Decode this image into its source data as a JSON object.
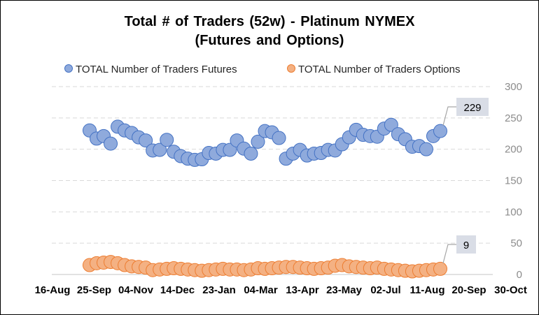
{
  "chart_data": {
    "type": "scatter",
    "title_line1": "Total # of Traders (52w) - Platinum  NYMEX",
    "title_line2": "(Futures and Options)",
    "ylim": [
      0,
      300
    ],
    "y_ticks": [
      "0",
      "50",
      "100",
      "150",
      "200",
      "250",
      "300"
    ],
    "y_axis_side": "right",
    "grid": "horizontal dashed",
    "legend_position": "top",
    "x_ticks": [
      "16-Aug",
      "25-Sep",
      "04-Nov",
      "14-Dec",
      "23-Jan",
      "04-Mar",
      "13-Apr",
      "23-May",
      "02-Jul",
      "11-Aug",
      "20-Sep",
      "30-Oct"
    ],
    "series": [
      {
        "name": "TOTAL Number of Traders Futures",
        "color": "#8faadc",
        "stroke": "#4472c4",
        "values": [
          230,
          217,
          221,
          209,
          236,
          230,
          226,
          219,
          214,
          198,
          199,
          215,
          196,
          189,
          185,
          183,
          184,
          194,
          193,
          199,
          199,
          214,
          201,
          193,
          212,
          229,
          227,
          218,
          185,
          193,
          199,
          190,
          193,
          194,
          199,
          198,
          208,
          219,
          231,
          223,
          221,
          220,
          233,
          239,
          224,
          216,
          204,
          205,
          200,
          221,
          229
        ]
      },
      {
        "name": "TOTAL Number of Traders Options",
        "color": "#f4b183",
        "stroke": "#ed7d31",
        "values": [
          15,
          18,
          19,
          20,
          18,
          15,
          13,
          12,
          11,
          7,
          8,
          9,
          10,
          9,
          8,
          7,
          6,
          7,
          8,
          9,
          8,
          8,
          7,
          8,
          10,
          9,
          10,
          11,
          12,
          12,
          11,
          10,
          9,
          10,
          11,
          14,
          15,
          13,
          12,
          11,
          10,
          11,
          9,
          8,
          7,
          6,
          5,
          6,
          7,
          8,
          9
        ]
      }
    ],
    "callouts": [
      {
        "series": 0,
        "text": "229"
      },
      {
        "series": 1,
        "text": "9"
      }
    ]
  }
}
